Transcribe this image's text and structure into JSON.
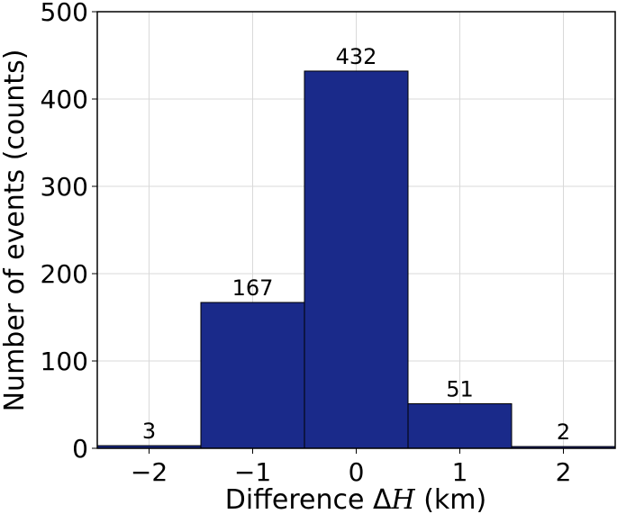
{
  "chart_data": {
    "type": "bar",
    "categories": [
      "−2",
      "−1",
      "0",
      "1",
      "2"
    ],
    "x": [
      -2,
      -1,
      0,
      1,
      2
    ],
    "values": [
      3,
      167,
      432,
      51,
      2
    ],
    "data_labels": [
      "3",
      "167",
      "432",
      "51",
      "2"
    ],
    "xlabel": "Difference ΔH (km)",
    "ylabel": "Number of events (counts)",
    "xlim": [
      -2.5,
      2.5
    ],
    "ylim": [
      0,
      500
    ],
    "yticks": [
      0,
      100,
      200,
      300,
      400,
      500
    ],
    "ytick_labels": [
      "0",
      "100",
      "200",
      "300",
      "400",
      "500"
    ],
    "xticks": [
      -2,
      -1,
      0,
      1,
      2
    ],
    "xtick_labels": [
      "−2",
      "−1",
      "0",
      "1",
      "2"
    ],
    "bar_width": 1,
    "grid": true,
    "bar_color": "#1a2a8a"
  }
}
